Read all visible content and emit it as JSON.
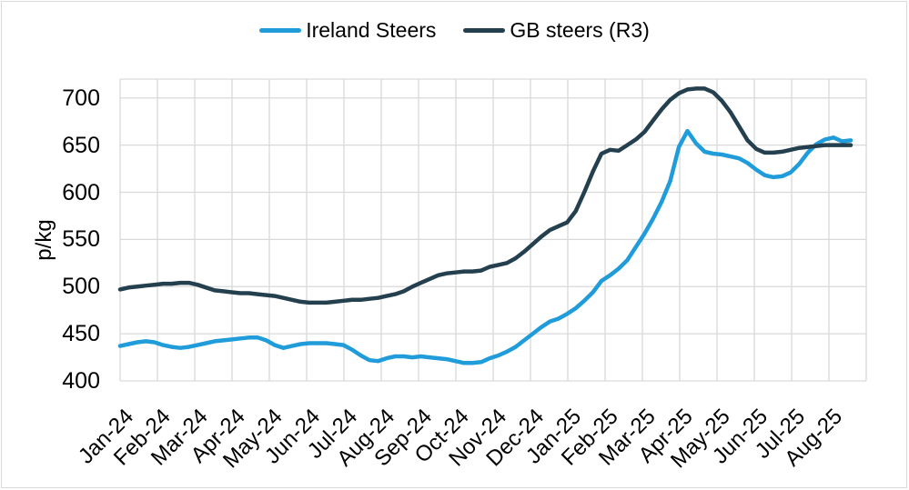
{
  "chart_data": {
    "type": "line",
    "title": "",
    "ylabel": "p/kg",
    "xlabel": "",
    "ylim": [
      400,
      720
    ],
    "y_ticks": [
      700,
      650,
      600,
      550,
      500,
      450,
      400
    ],
    "grid": true,
    "legend_position": "top",
    "x_month_labels": [
      "Jan-24",
      "Feb-24",
      "Mar-24",
      "Apr-24",
      "May-24",
      "Jun-24",
      "Jul-24",
      "Aug-24",
      "Sep-24",
      "Oct-24",
      "Nov-24",
      "Dec-24",
      "Jan-25",
      "Feb-25",
      "Mar-25",
      "Apr-25",
      "May-25",
      "Jun-25",
      "Jul-25",
      "Aug-25"
    ],
    "x_unit": "weekly points spanning Jan-24 to Aug-25",
    "colors": {
      "ireland": "#1f9cd9",
      "gb": "#24404f",
      "gridline": "#d9d9d9",
      "text": "#000000",
      "border": "#d9d9d9"
    },
    "series": [
      {
        "name": "Ireland Steers",
        "color": "#1f9cd9",
        "values": [
          437,
          439,
          441,
          442,
          441,
          438,
          436,
          435,
          436,
          438,
          440,
          442,
          443,
          444,
          445,
          446,
          446,
          443,
          438,
          435,
          437,
          439,
          440,
          440,
          440,
          439,
          438,
          433,
          427,
          422,
          421,
          424,
          426,
          426,
          425,
          426,
          425,
          424,
          423,
          421,
          419,
          419,
          420,
          424,
          427,
          431,
          436,
          443,
          450,
          457,
          463,
          466,
          471,
          477,
          485,
          494,
          506,
          512,
          519,
          528,
          542,
          556,
          572,
          590,
          612,
          648,
          665,
          652,
          643,
          641,
          640,
          638,
          636,
          631,
          624,
          618,
          616,
          617,
          621,
          630,
          642,
          651,
          656,
          658,
          654,
          655
        ]
      },
      {
        "name": "GB steers (R3)",
        "color": "#24404f",
        "values": [
          497,
          499,
          500,
          501,
          502,
          503,
          503,
          504,
          504,
          502,
          499,
          496,
          495,
          494,
          493,
          493,
          492,
          491,
          490,
          488,
          486,
          484,
          483,
          483,
          483,
          484,
          485,
          486,
          486,
          487,
          488,
          490,
          492,
          495,
          500,
          504,
          508,
          512,
          514,
          515,
          516,
          516,
          517,
          521,
          523,
          525,
          530,
          537,
          545,
          553,
          560,
          564,
          568,
          580,
          600,
          622,
          641,
          645,
          644,
          650,
          656,
          664,
          676,
          688,
          698,
          705,
          709,
          710,
          710,
          706,
          697,
          685,
          670,
          655,
          646,
          642,
          642,
          643,
          645,
          647,
          648,
          649,
          650,
          650,
          650,
          650
        ]
      }
    ]
  }
}
